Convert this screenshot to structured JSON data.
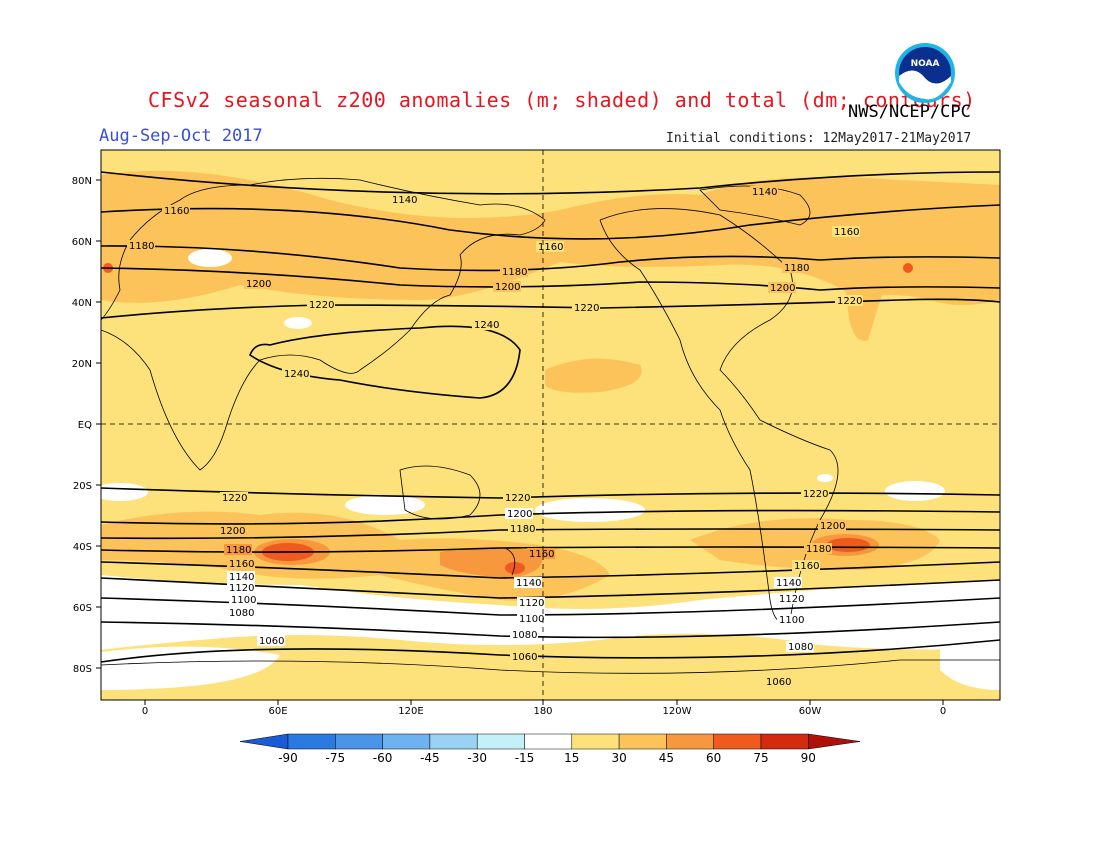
{
  "header": {
    "title": "CFSv2 seasonal z200 anomalies (m; shaded) and total (dm; contours)",
    "agency": "NWS/NCEP/CPC",
    "period": "Aug-Sep-Oct 2017",
    "initial_conditions": "Initial conditions: 12May2017-21May2017",
    "logo_text": "NOAA"
  },
  "map": {
    "lat_labels": [
      "80N",
      "60N",
      "40N",
      "20N",
      "EQ",
      "20S",
      "40S",
      "60S",
      "80S"
    ],
    "lon_labels": [
      "0",
      "60E",
      "120E",
      "180",
      "120W",
      "60W",
      "0"
    ],
    "contours": [
      {
        "value": "1140",
        "label": "1140"
      },
      {
        "value": "1160",
        "label": "1160"
      },
      {
        "value": "1180",
        "label": "1180"
      },
      {
        "value": "1200",
        "label": "1200"
      },
      {
        "value": "1220",
        "label": "1220"
      },
      {
        "value": "1240",
        "label": "1240"
      },
      {
        "value": "1100",
        "label": "1100"
      },
      {
        "value": "1120",
        "label": "1120"
      },
      {
        "value": "1080",
        "label": "1080"
      },
      {
        "value": "1060",
        "label": "1060"
      }
    ]
  },
  "colorbar": {
    "labels": [
      "-90",
      "-75",
      "-60",
      "-45",
      "-30",
      "-15",
      "15",
      "30",
      "45",
      "60",
      "75",
      "90"
    ],
    "colors": [
      "#1a5bd6",
      "#2b7ae0",
      "#4a95e8",
      "#6eb2ef",
      "#9ad2f4",
      "#c4f0f7",
      "#ffffff",
      "#fde17a",
      "#fcc35a",
      "#f7983f",
      "#ef5a1f",
      "#d42a10",
      "#b0100a"
    ]
  },
  "colors": {
    "base_shade": "#fde17a",
    "mid_shade": "#fcc35a",
    "strong_shade": "#f7983f",
    "max_shade": "#ef5a1f",
    "neutral": "#ffffff",
    "title_red": "#e8141e",
    "period_blue": "#3a4fd6"
  }
}
